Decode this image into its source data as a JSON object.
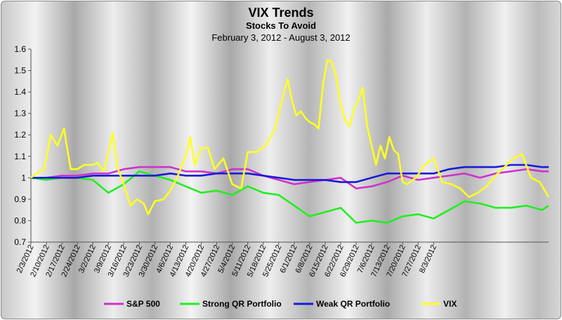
{
  "chart_data": {
    "type": "line",
    "title": "VIX Trends",
    "subtitle": "Stocks To Avoid",
    "date_range": "February 3, 2012 - August 3, 2012",
    "ylim": [
      0.7,
      1.6
    ],
    "y_ticks": [
      "0.7",
      "0.8",
      "0.9",
      "1",
      "1.1",
      "1.2",
      "1.3",
      "1.4",
      "1.5",
      "1.6"
    ],
    "x_ticks": [
      "2/3/2012",
      "2/10/2012",
      "2/17/2012",
      "2/24/2012",
      "3/2/2012",
      "3/9/2012",
      "3/16/2012",
      "3/23/2012",
      "3/30/2012",
      "4/6/2012",
      "4/13/2012",
      "4/20/2012",
      "4/27/2012",
      "5/4/2012",
      "5/11/2012",
      "5/18/2012",
      "5/25/2012",
      "6/1/2012",
      "6/8/2012",
      "6/15/2012",
      "6/22/2012",
      "6/29/2012",
      "7/6/2012",
      "7/13/2012",
      "7/20/2012",
      "7/27/2012",
      "8/3/2012"
    ],
    "grid": false,
    "legend_position": "bottom",
    "series": [
      {
        "name": "S&P 500",
        "color": "#cc33cc",
        "points": [
          [
            0,
            1.0
          ],
          [
            7,
            1.0
          ],
          [
            14,
            1.01
          ],
          [
            21,
            1.01
          ],
          [
            28,
            1.02
          ],
          [
            35,
            1.02
          ],
          [
            42,
            1.04
          ],
          [
            49,
            1.05
          ],
          [
            56,
            1.05
          ],
          [
            63,
            1.05
          ],
          [
            70,
            1.03
          ],
          [
            77,
            1.03
          ],
          [
            84,
            1.02
          ],
          [
            91,
            1.04
          ],
          [
            98,
            1.04
          ],
          [
            105,
            1.01
          ],
          [
            112,
            0.99
          ],
          [
            119,
            0.97
          ],
          [
            126,
            0.98
          ],
          [
            133,
            0.99
          ],
          [
            140,
            1.0
          ],
          [
            147,
            0.95
          ],
          [
            154,
            0.96
          ],
          [
            161,
            0.98
          ],
          [
            168,
            1.01
          ],
          [
            175,
            0.99
          ],
          [
            182,
            1.0
          ],
          [
            189,
            1.01
          ],
          [
            196,
            1.02
          ],
          [
            203,
            1.0
          ],
          [
            210,
            1.02
          ],
          [
            217,
            1.03
          ],
          [
            224,
            1.04
          ],
          [
            231,
            1.03
          ],
          [
            234,
            1.03
          ]
        ]
      },
      {
        "name": "Strong QR Portfolio",
        "color": "#22ee22",
        "points": [
          [
            0,
            1.0
          ],
          [
            7,
            0.99
          ],
          [
            14,
            1.0
          ],
          [
            21,
            1.0
          ],
          [
            28,
            0.99
          ],
          [
            35,
            0.93
          ],
          [
            42,
            0.97
          ],
          [
            49,
            1.03
          ],
          [
            56,
            1.01
          ],
          [
            63,
            0.99
          ],
          [
            70,
            0.96
          ],
          [
            77,
            0.93
          ],
          [
            84,
            0.94
          ],
          [
            91,
            0.92
          ],
          [
            98,
            0.96
          ],
          [
            105,
            0.93
          ],
          [
            112,
            0.92
          ],
          [
            119,
            0.87
          ],
          [
            126,
            0.82
          ],
          [
            133,
            0.84
          ],
          [
            140,
            0.86
          ],
          [
            147,
            0.79
          ],
          [
            154,
            0.8
          ],
          [
            161,
            0.79
          ],
          [
            168,
            0.82
          ],
          [
            175,
            0.83
          ],
          [
            182,
            0.81
          ],
          [
            189,
            0.85
          ],
          [
            196,
            0.89
          ],
          [
            203,
            0.88
          ],
          [
            210,
            0.86
          ],
          [
            217,
            0.86
          ],
          [
            224,
            0.87
          ],
          [
            231,
            0.85
          ],
          [
            234,
            0.87
          ]
        ]
      },
      {
        "name": "Weak QR Portfolio",
        "color": "#1a1ad8",
        "points": [
          [
            0,
            1.0
          ],
          [
            7,
            1.0
          ],
          [
            14,
            1.0
          ],
          [
            21,
            1.0
          ],
          [
            28,
            1.01
          ],
          [
            35,
            1.01
          ],
          [
            42,
            1.01
          ],
          [
            49,
            1.01
          ],
          [
            56,
            1.01
          ],
          [
            63,
            1.02
          ],
          [
            70,
            1.01
          ],
          [
            77,
            1.01
          ],
          [
            84,
            1.02
          ],
          [
            91,
            1.02
          ],
          [
            98,
            1.02
          ],
          [
            105,
            1.01
          ],
          [
            112,
            1.0
          ],
          [
            119,
            0.99
          ],
          [
            126,
            0.99
          ],
          [
            133,
            0.99
          ],
          [
            140,
            0.98
          ],
          [
            147,
            0.98
          ],
          [
            154,
            1.0
          ],
          [
            161,
            1.02
          ],
          [
            168,
            1.02
          ],
          [
            175,
            1.02
          ],
          [
            182,
            1.02
          ],
          [
            189,
            1.04
          ],
          [
            196,
            1.05
          ],
          [
            203,
            1.05
          ],
          [
            210,
            1.05
          ],
          [
            217,
            1.06
          ],
          [
            224,
            1.06
          ],
          [
            231,
            1.05
          ],
          [
            234,
            1.05
          ]
        ]
      },
      {
        "name": "VIX",
        "color": "#ffff22",
        "points": [
          [
            0,
            1.0
          ],
          [
            4,
            1.03
          ],
          [
            6,
            1.04
          ],
          [
            9,
            1.2
          ],
          [
            12,
            1.15
          ],
          [
            15,
            1.23
          ],
          [
            16,
            1.16
          ],
          [
            18,
            1.04
          ],
          [
            21,
            1.04
          ],
          [
            24,
            1.06
          ],
          [
            28,
            1.06
          ],
          [
            30,
            1.07
          ],
          [
            33,
            1.03
          ],
          [
            37,
            1.21
          ],
          [
            39,
            1.05
          ],
          [
            42,
            0.97
          ],
          [
            45,
            0.87
          ],
          [
            48,
            0.9
          ],
          [
            51,
            0.88
          ],
          [
            53,
            0.83
          ],
          [
            56,
            0.89
          ],
          [
            60,
            0.9
          ],
          [
            63,
            0.94
          ],
          [
            66,
            1.0
          ],
          [
            70,
            1.1
          ],
          [
            72,
            1.19
          ],
          [
            74,
            1.06
          ],
          [
            77,
            1.14
          ],
          [
            80,
            1.14
          ],
          [
            83,
            1.04
          ],
          [
            87,
            1.09
          ],
          [
            91,
            0.97
          ],
          [
            95,
            0.95
          ],
          [
            98,
            1.12
          ],
          [
            102,
            1.12
          ],
          [
            106,
            1.15
          ],
          [
            110,
            1.22
          ],
          [
            114,
            1.38
          ],
          [
            116,
            1.46
          ],
          [
            118,
            1.36
          ],
          [
            120,
            1.29
          ],
          [
            122,
            1.31
          ],
          [
            124,
            1.28
          ],
          [
            126,
            1.26
          ],
          [
            128,
            1.25
          ],
          [
            130,
            1.23
          ],
          [
            132,
            1.43
          ],
          [
            134,
            1.55
          ],
          [
            136,
            1.54
          ],
          [
            138,
            1.47
          ],
          [
            140,
            1.34
          ],
          [
            142,
            1.27
          ],
          [
            144,
            1.24
          ],
          [
            146,
            1.32
          ],
          [
            148,
            1.36
          ],
          [
            150,
            1.42
          ],
          [
            152,
            1.24
          ],
          [
            154,
            1.15
          ],
          [
            156,
            1.06
          ],
          [
            158,
            1.15
          ],
          [
            160,
            1.09
          ],
          [
            162,
            1.19
          ],
          [
            164,
            1.13
          ],
          [
            166,
            1.11
          ],
          [
            168,
            0.98
          ],
          [
            170,
            0.97
          ],
          [
            174,
            1.0
          ],
          [
            178,
            1.06
          ],
          [
            182,
            1.09
          ],
          [
            186,
            0.98
          ],
          [
            190,
            0.97
          ],
          [
            194,
            0.95
          ],
          [
            198,
            0.91
          ],
          [
            202,
            0.93
          ],
          [
            206,
            0.96
          ],
          [
            210,
            1.01
          ],
          [
            214,
            1.05
          ],
          [
            218,
            1.09
          ],
          [
            222,
            1.11
          ],
          [
            226,
            1.0
          ],
          [
            230,
            0.98
          ],
          [
            234,
            0.91
          ]
        ]
      }
    ]
  }
}
